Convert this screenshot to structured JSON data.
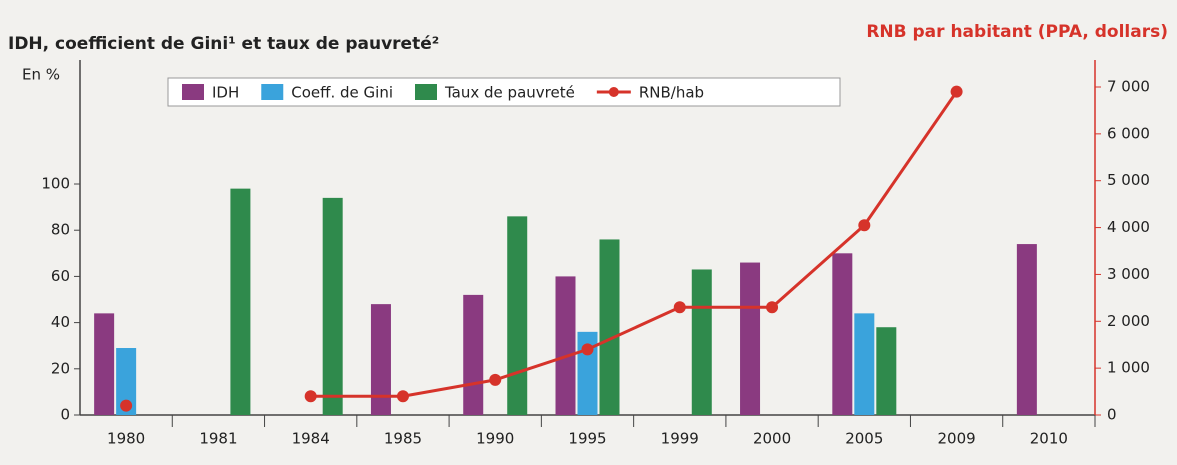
{
  "chart_data": {
    "type": "bar",
    "title": "IDH, coefficient de Gini¹ et taux de pauvreté²",
    "y_label": "En %",
    "y2_label": "RNB par habitant (PPA, dollars)",
    "categories": [
      "1980",
      "1981",
      "1984",
      "1985",
      "1990",
      "1995",
      "1999",
      "2000",
      "2005",
      "2009",
      "2010"
    ],
    "series": [
      {
        "name": "IDH",
        "color": "#8a3a80",
        "values": [
          44,
          null,
          null,
          48,
          52,
          60,
          null,
          66,
          70,
          null,
          74
        ]
      },
      {
        "name": "Coeff. de Gini",
        "color": "#3aa3dc",
        "values": [
          29,
          null,
          null,
          null,
          null,
          36,
          null,
          null,
          44,
          null,
          null
        ]
      },
      {
        "name": "Taux de pauvreté",
        "color": "#2f8a4c",
        "values": [
          null,
          98,
          94,
          null,
          86,
          76,
          63,
          null,
          38,
          null,
          null
        ]
      },
      {
        "name": "RNB/hab",
        "color": "#d6332a",
        "type": "line",
        "axis": "y2",
        "values": [
          200,
          null,
          400,
          400,
          750,
          1400,
          2300,
          2300,
          4050,
          6900,
          null
        ]
      }
    ],
    "ylim": [
      0,
      142
    ],
    "yticks": [
      0,
      20,
      40,
      60,
      80,
      100
    ],
    "y2lim": [
      0,
      7000
    ],
    "y2ticks": [
      0,
      {
        "value": 1000,
        "label": "1 000"
      },
      {
        "value": 2000,
        "label": "2 000"
      },
      {
        "value": 3000,
        "label": "3 000"
      },
      {
        "value": 4000,
        "label": "4 000"
      },
      {
        "value": 5000,
        "label": "5 000"
      },
      {
        "value": 6000,
        "label": "6 000"
      },
      {
        "value": 7000,
        "label": "7 000"
      }
    ]
  }
}
